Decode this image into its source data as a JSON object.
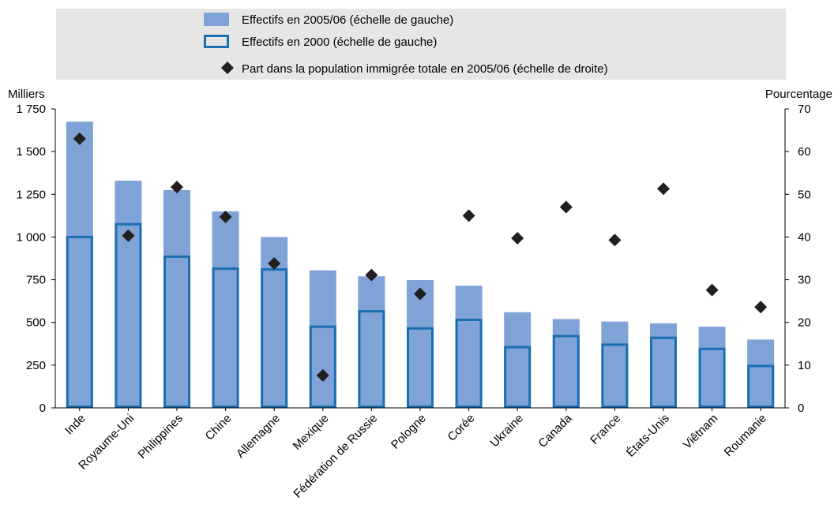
{
  "chart_data": {
    "type": "bar",
    "categories": [
      "Inde",
      "Royaume-Uni",
      "Philippines",
      "Chine",
      "Allemagne",
      "Mexique",
      "Fédération de Russie",
      "Pologne",
      "Corée",
      "Ukraine",
      "Canada",
      "France",
      "États-Unis",
      "Viêtnam",
      "Roumanie"
    ],
    "series": [
      {
        "name": "Effectifs en 2005/06 (échelle de gauche)",
        "type": "bar",
        "axis": "left",
        "color": "#7fa3d6",
        "values": [
          1675,
          1330,
          1275,
          1150,
          1000,
          805,
          770,
          748,
          715,
          560,
          520,
          505,
          495,
          475,
          400
        ]
      },
      {
        "name": "Effectifs en 2000 (échelle de gauche)",
        "type": "bar-outline",
        "axis": "left",
        "color": "#1a6fb3",
        "values": [
          1000,
          1075,
          885,
          815,
          810,
          475,
          565,
          465,
          515,
          355,
          420,
          370,
          410,
          345,
          245
        ]
      },
      {
        "name": "Part dans la population immigrée totale en 2005/06 (échelle de droite)",
        "type": "scatter",
        "axis": "right",
        "color": "#231f20",
        "values": [
          63.0,
          40.3,
          51.7,
          44.7,
          33.8,
          7.6,
          31.1,
          26.7,
          45.0,
          39.7,
          47.0,
          39.3,
          51.3,
          27.6,
          23.6
        ]
      }
    ],
    "ylabel_left": "Milliers",
    "ylabel_right": "Pourcentage",
    "ylim_left": [
      0,
      1750
    ],
    "ylim_right": [
      0,
      70
    ],
    "yticks_left": [
      0,
      250,
      500,
      750,
      1000,
      1250,
      1500,
      1750
    ],
    "yticks_left_labels": [
      "0",
      "250",
      "500",
      "750",
      "1 000",
      "1 250",
      "1 500",
      "1 750"
    ],
    "yticks_right": [
      0,
      10,
      20,
      30,
      40,
      50,
      60,
      70
    ],
    "yticks_right_labels": [
      "0",
      "10",
      "20",
      "30",
      "40",
      "50",
      "60",
      "70"
    ],
    "grid": false,
    "legend_position": "top"
  }
}
